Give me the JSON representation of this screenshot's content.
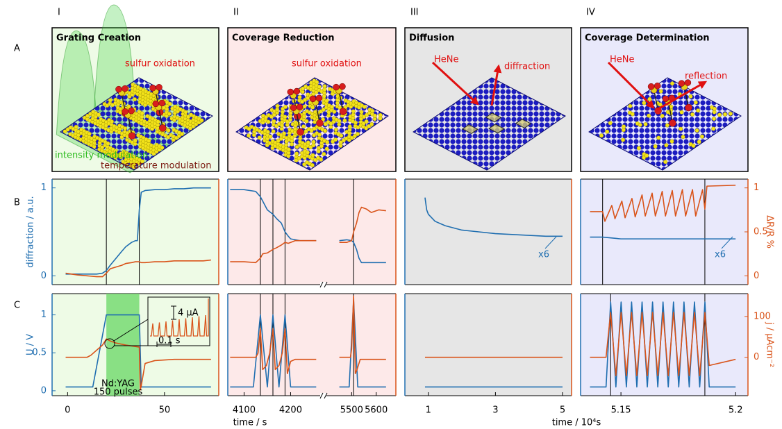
{
  "columns": [
    {
      "label": "I",
      "background": "#eefbe6"
    },
    {
      "label": "II",
      "background": "#fde9e9"
    },
    {
      "label": "III",
      "background": "#e6e6e6"
    },
    {
      "label": "IV",
      "background": "#e9e9fb"
    }
  ],
  "rows": [
    "A",
    "B",
    "C"
  ],
  "illustrations": [
    {
      "title": "Grating Creation",
      "labels": [
        "sulfur oxidation",
        "intensity modulation",
        "temperature modulation"
      ]
    },
    {
      "title": "Coverage Reduction",
      "labels": [
        "sulfur oxidation"
      ]
    },
    {
      "title": "Diffusion",
      "labels": [
        "HeNe",
        "diffraction"
      ]
    },
    {
      "title": "Coverage Determination",
      "labels": [
        "HeNe",
        "reflection"
      ]
    }
  ],
  "chart_data": [
    {
      "type": "line",
      "xlim": [
        -8,
        78
      ],
      "ylim": [
        -0.1,
        1.1
      ],
      "yticks": [
        0,
        1
      ],
      "y2lim": [
        -0.1,
        1.1
      ],
      "ylabel": "diffraction / a.u.",
      "markers": [
        20,
        37
      ],
      "x": [
        -1,
        5,
        10,
        15,
        18,
        20,
        22,
        25,
        28,
        30,
        33,
        35,
        36,
        37,
        38,
        40,
        45,
        50,
        55,
        60,
        65,
        70,
        74
      ],
      "series": [
        {
          "color": "#1f6eb0",
          "values": [
            0.02,
            0.02,
            0.02,
            0.02,
            0.03,
            0.06,
            0.12,
            0.2,
            0.28,
            0.33,
            0.38,
            0.4,
            0.4,
            0.75,
            0.95,
            0.97,
            0.98,
            0.98,
            0.99,
            0.99,
            1,
            1,
            1
          ]
        },
        {
          "color": "#d95319",
          "axis": "y2",
          "values": [
            0.03,
            0.01,
            0,
            -0.01,
            -0.01,
            0.03,
            0.08,
            0.1,
            0.12,
            0.14,
            0.15,
            0.16,
            0.16,
            0.16,
            0.15,
            0.15,
            0.16,
            0.16,
            0.17,
            0.17,
            0.17,
            0.17,
            0.18
          ]
        }
      ]
    },
    {
      "type": "line",
      "xlim": [
        4065,
        4265
      ],
      "ylim": [
        -0.1,
        1.1
      ],
      "y2lim": [
        -0.1,
        1.1
      ],
      "markers": [
        4135,
        4162,
        4188
      ],
      "x": [
        4070,
        4100,
        4125,
        4135,
        4140,
        4150,
        4162,
        4170,
        4180,
        4188,
        4195,
        4200,
        4210,
        4220,
        4255
      ],
      "series": [
        {
          "color": "#1f6eb0",
          "values": [
            0.98,
            0.98,
            0.96,
            0.9,
            0.85,
            0.75,
            0.7,
            0.65,
            0.6,
            0.5,
            0.45,
            0.42,
            0.41,
            0.4,
            0.4
          ]
        },
        {
          "color": "#d95319",
          "axis": "y2",
          "values": [
            0.16,
            0.16,
            0.15,
            0.2,
            0.25,
            0.26,
            0.3,
            0.32,
            0.35,
            0.38,
            0.37,
            0.38,
            0.4,
            0.4,
            0.4
          ]
        }
      ]
    },
    {
      "type": "line",
      "xlim": [
        5403,
        5680
      ],
      "ylim": [
        -0.1,
        1.1
      ],
      "y2lim": [
        -0.1,
        1.1
      ],
      "markers": [
        5508
      ],
      "x": [
        5450,
        5480,
        5500,
        5508,
        5520,
        5530,
        5540,
        5560,
        5580,
        5610,
        5640
      ],
      "series": [
        {
          "color": "#1f6eb0",
          "values": [
            0.4,
            0.41,
            0.4,
            0.38,
            0.3,
            0.2,
            0.15,
            0.15,
            0.15,
            0.15,
            0.15
          ]
        },
        {
          "color": "#d95319",
          "axis": "y2",
          "values": [
            0.38,
            0.38,
            0.4,
            0.5,
            0.6,
            0.72,
            0.78,
            0.76,
            0.72,
            0.75,
            0.74
          ]
        }
      ]
    },
    {
      "type": "line",
      "xlim": [
        0.3,
        5.27
      ],
      "ylim": [
        -0.1,
        1.1
      ],
      "y2lim": [
        -0.1,
        1.1
      ],
      "annotations": [
        "x6"
      ],
      "x": [
        0.9,
        0.95,
        1,
        1.2,
        1.5,
        2,
        2.5,
        3,
        3.5,
        4,
        4.5,
        5
      ],
      "series": [
        {
          "color": "#1f6eb0",
          "values": [
            0.89,
            0.75,
            0.7,
            0.62,
            0.57,
            0.52,
            0.5,
            0.48,
            0.47,
            0.46,
            0.45,
            0.45
          ]
        }
      ]
    },
    {
      "type": "line",
      "xlim": [
        5.1324,
        5.2054
      ],
      "ylim": [
        -0.1,
        1.1
      ],
      "y2lim": [
        -0.1,
        1.1
      ],
      "y2ticks": [
        0,
        0.5,
        1
      ],
      "y2label": "ΔR/R %",
      "markers": [
        5.142,
        5.1866
      ],
      "annotations": [
        "x6"
      ],
      "x": [
        5.1365,
        5.142,
        5.143,
        5.146,
        5.1474,
        5.1504,
        5.1518,
        5.1548,
        5.1562,
        5.1592,
        5.1606,
        5.1636,
        5.165,
        5.168,
        5.1694,
        5.1724,
        5.1738,
        5.1768,
        5.1782,
        5.1812,
        5.1826,
        5.1856,
        5.1866,
        5.1875,
        5.2
      ],
      "series": [
        {
          "color": "#1f6eb0",
          "x": [
            5.1365,
            5.142,
            5.15,
            5.187,
            5.2
          ],
          "values": [
            0.44,
            0.44,
            0.42,
            0.42,
            0.42
          ]
        },
        {
          "color": "#d95319",
          "axis": "y2",
          "values": [
            0.73,
            0.73,
            0.62,
            0.8,
            0.65,
            0.85,
            0.66,
            0.88,
            0.67,
            0.92,
            0.68,
            0.94,
            0.68,
            0.96,
            0.68,
            0.97,
            0.68,
            0.98,
            0.68,
            0.98,
            0.68,
            0.98,
            0.76,
            1.02,
            1.03
          ]
        }
      ]
    },
    {
      "type": "line",
      "xlim": [
        -8,
        78
      ],
      "ylim": [
        -0.065,
        1.28
      ],
      "yticks": [
        0,
        0.5,
        1
      ],
      "y2lim": [
        -94,
        156
      ],
      "xticks": [
        0,
        50
      ],
      "ylabel": "U / V",
      "xlabel": "time / s",
      "shade": [
        20,
        37
      ],
      "shade_color": "#6fd96c",
      "annotations": [
        "Nd:YAG",
        "150 pulses",
        "4 µA",
        "0.1 s"
      ],
      "x": [
        -1,
        10,
        12,
        18,
        20,
        22,
        25,
        30,
        37,
        37.5,
        38,
        40,
        45,
        55,
        74
      ],
      "series": [
        {
          "color": "#1f6eb0",
          "x": [
            -1,
            13,
            20,
            37,
            38,
            74
          ],
          "values": [
            0.05,
            0.05,
            1,
            1,
            0.05,
            0.05
          ]
        },
        {
          "color": "#d95319",
          "axis": "y2",
          "values": [
            0,
            0,
            5,
            30,
            45,
            40,
            35,
            30,
            25,
            -80,
            -70,
            -15,
            -8,
            -5,
            -5
          ]
        }
      ]
    },
    {
      "type": "line",
      "xlim": [
        4065,
        4265
      ],
      "ylim": [
        -0.065,
        1.28
      ],
      "y2lim": [
        -94,
        156
      ],
      "xticks": [
        4100,
        4200
      ],
      "markers": [
        4135,
        4162,
        4188
      ],
      "x": [
        4070,
        4125,
        4130,
        4135,
        4140,
        4148,
        4155,
        4162,
        4167,
        4175,
        4182,
        4188,
        4193,
        4200,
        4210,
        4255
      ],
      "series": [
        {
          "color": "#1f6eb0",
          "x": [
            4070,
            4120,
            4135,
            4150,
            4162,
            4175,
            4188,
            4200,
            4255
          ],
          "values": [
            0.05,
            0.05,
            1,
            0.05,
            1,
            0.05,
            1,
            0.05,
            0.05
          ]
        },
        {
          "color": "#d95319",
          "axis": "y2",
          "values": [
            0,
            0,
            10,
            70,
            -30,
            -20,
            10,
            70,
            -30,
            -20,
            10,
            70,
            -40,
            -10,
            -5,
            -5
          ]
        }
      ]
    },
    {
      "type": "line",
      "xlim": [
        5403,
        5680
      ],
      "ylim": [
        -0.065,
        1.28
      ],
      "y2lim": [
        -94,
        156
      ],
      "xticks": [
        5500,
        5600
      ],
      "markers": [
        5508
      ],
      "x": [
        5450,
        5495,
        5500,
        5508,
        5515,
        5522,
        5535,
        5640
      ],
      "series": [
        {
          "color": "#1f6eb0",
          "x": [
            5450,
            5490,
            5508,
            5525,
            5640
          ],
          "values": [
            0.05,
            0.05,
            1.2,
            0.05,
            0.05
          ]
        },
        {
          "color": "#d95319",
          "axis": "y2",
          "values": [
            0,
            0,
            20,
            150,
            -40,
            -30,
            -5,
            -5
          ]
        }
      ]
    },
    {
      "type": "line",
      "xlim": [
        0.3,
        5.27
      ],
      "ylim": [
        -0.065,
        1.28
      ],
      "y2lim": [
        -94,
        156
      ],
      "xticks": [
        1,
        3,
        5
      ],
      "xlabel": "time / 10⁴s",
      "x": [
        0.9,
        5
      ],
      "series": [
        {
          "color": "#1f6eb0",
          "values": [
            0.05,
            0.05
          ]
        },
        {
          "color": "#d95319",
          "axis": "y2",
          "values": [
            0,
            0
          ]
        }
      ]
    },
    {
      "type": "line",
      "xlim": [
        5.1324,
        5.2054
      ],
      "ylim": [
        -0.065,
        1.28
      ],
      "y2lim": [
        -94,
        156
      ],
      "xticks": [
        5.15,
        5.2
      ],
      "y2ticks": [
        0,
        100
      ],
      "y2label": "j / µAcm⁻²",
      "markers": [
        5.1455,
        5.1866
      ],
      "x": [
        5.1365,
        5.1435,
        5.1455,
        5.14779,
        5.15007,
        5.15236,
        5.15464,
        5.15693,
        5.15921,
        5.1615,
        5.16378,
        5.16607,
        5.16835,
        5.17064,
        5.17292,
        5.17521,
        5.17749,
        5.17978,
        5.18206,
        5.18435,
        5.18663,
        5.1885,
        5.2
      ],
      "series": [
        {
          "color": "#1f6eb0",
          "values": [
            0.05,
            0.05,
            1.17,
            0.05,
            1.17,
            0.05,
            1.17,
            0.05,
            1.17,
            0.05,
            1.17,
            0.05,
            1.17,
            0.05,
            1.17,
            0.05,
            1.17,
            0.05,
            1.17,
            0.05,
            1.17,
            0.05,
            0.05
          ]
        },
        {
          "color": "#d95319",
          "axis": "y2",
          "values": [
            0,
            0,
            110,
            -45,
            110,
            -45,
            110,
            -45,
            110,
            -45,
            110,
            -45,
            110,
            -45,
            110,
            -45,
            110,
            -45,
            110,
            -45,
            110,
            -20,
            -5
          ]
        }
      ]
    }
  ]
}
